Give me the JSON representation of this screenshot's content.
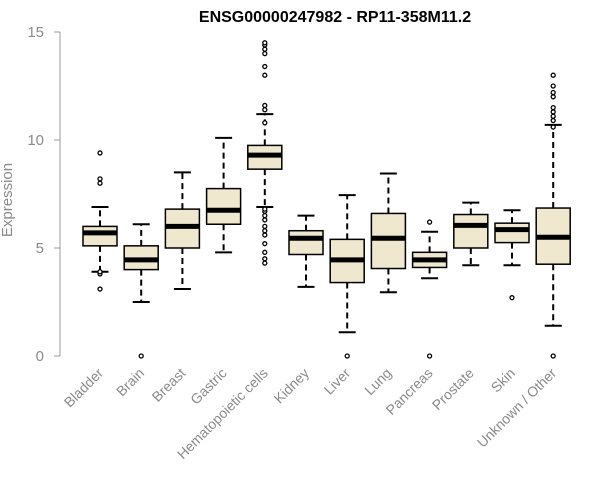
{
  "chart_data": {
    "type": "box",
    "title": "ENSG00000247982 - RP11-358M11.2",
    "xlabel": "",
    "ylabel": "Expression",
    "ylim": [
      0,
      15
    ],
    "yticks": [
      0,
      5,
      10,
      15
    ],
    "grid": false,
    "legend": "none",
    "box_fill": "#efe8cf",
    "categories": [
      "Bladder",
      "Brain",
      "Breast",
      "Gastric",
      "Hematopoietic cells",
      "Kidney",
      "Liver",
      "Lung",
      "Pancreas",
      "Prostate",
      "Skin",
      "Unknown / Other"
    ],
    "boxes": [
      {
        "category": "Bladder",
        "whisker_low": 3.9,
        "q1": 5.1,
        "median": 5.7,
        "q3": 6.0,
        "whisker_high": 6.9,
        "outliers": [
          3.1,
          3.8,
          3.9,
          8.0,
          8.2,
          9.4
        ]
      },
      {
        "category": "Brain",
        "whisker_low": 2.5,
        "q1": 4.0,
        "median": 4.45,
        "q3": 5.1,
        "whisker_high": 6.1,
        "outliers": [
          0.0
        ]
      },
      {
        "category": "Breast",
        "whisker_low": 3.1,
        "q1": 5.0,
        "median": 6.0,
        "q3": 6.8,
        "whisker_high": 8.5,
        "outliers": []
      },
      {
        "category": "Gastric",
        "whisker_low": 4.8,
        "q1": 6.1,
        "median": 6.75,
        "q3": 7.75,
        "whisker_high": 10.1,
        "outliers": []
      },
      {
        "category": "Hematopoietic cells",
        "whisker_low": 6.9,
        "q1": 8.65,
        "median": 9.3,
        "q3": 9.75,
        "whisker_high": 11.2,
        "outliers": [
          4.3,
          4.5,
          4.8,
          5.2,
          5.6,
          5.8,
          6.0,
          6.3,
          6.5,
          6.7,
          6.8,
          10.8,
          11.4,
          11.6,
          13.0,
          13.4,
          14.0,
          14.2,
          14.4,
          14.5
        ]
      },
      {
        "category": "Kidney",
        "whisker_low": 3.2,
        "q1": 4.7,
        "median": 5.45,
        "q3": 5.8,
        "whisker_high": 6.5,
        "outliers": []
      },
      {
        "category": "Liver",
        "whisker_low": 1.1,
        "q1": 3.4,
        "median": 4.45,
        "q3": 5.4,
        "whisker_high": 7.45,
        "outliers": [
          0.0
        ]
      },
      {
        "category": "Lung",
        "whisker_low": 2.95,
        "q1": 4.05,
        "median": 5.45,
        "q3": 6.6,
        "whisker_high": 8.45,
        "outliers": []
      },
      {
        "category": "Pancreas",
        "whisker_low": 3.6,
        "q1": 4.1,
        "median": 4.45,
        "q3": 4.8,
        "whisker_high": 5.75,
        "outliers": [
          0.0,
          6.2
        ]
      },
      {
        "category": "Prostate",
        "whisker_low": 4.2,
        "q1": 5.0,
        "median": 6.05,
        "q3": 6.55,
        "whisker_high": 7.1,
        "outliers": []
      },
      {
        "category": "Skin",
        "whisker_low": 4.2,
        "q1": 5.25,
        "median": 5.85,
        "q3": 6.15,
        "whisker_high": 6.75,
        "outliers": [
          2.7
        ]
      },
      {
        "category": "Unknown / Other",
        "whisker_low": 1.4,
        "q1": 4.25,
        "median": 5.5,
        "q3": 6.85,
        "whisker_high": 10.7,
        "outliers": [
          0.0,
          10.6,
          10.9,
          11.1,
          11.3,
          11.5,
          12.0,
          12.2,
          12.5,
          13.0
        ]
      }
    ]
  }
}
